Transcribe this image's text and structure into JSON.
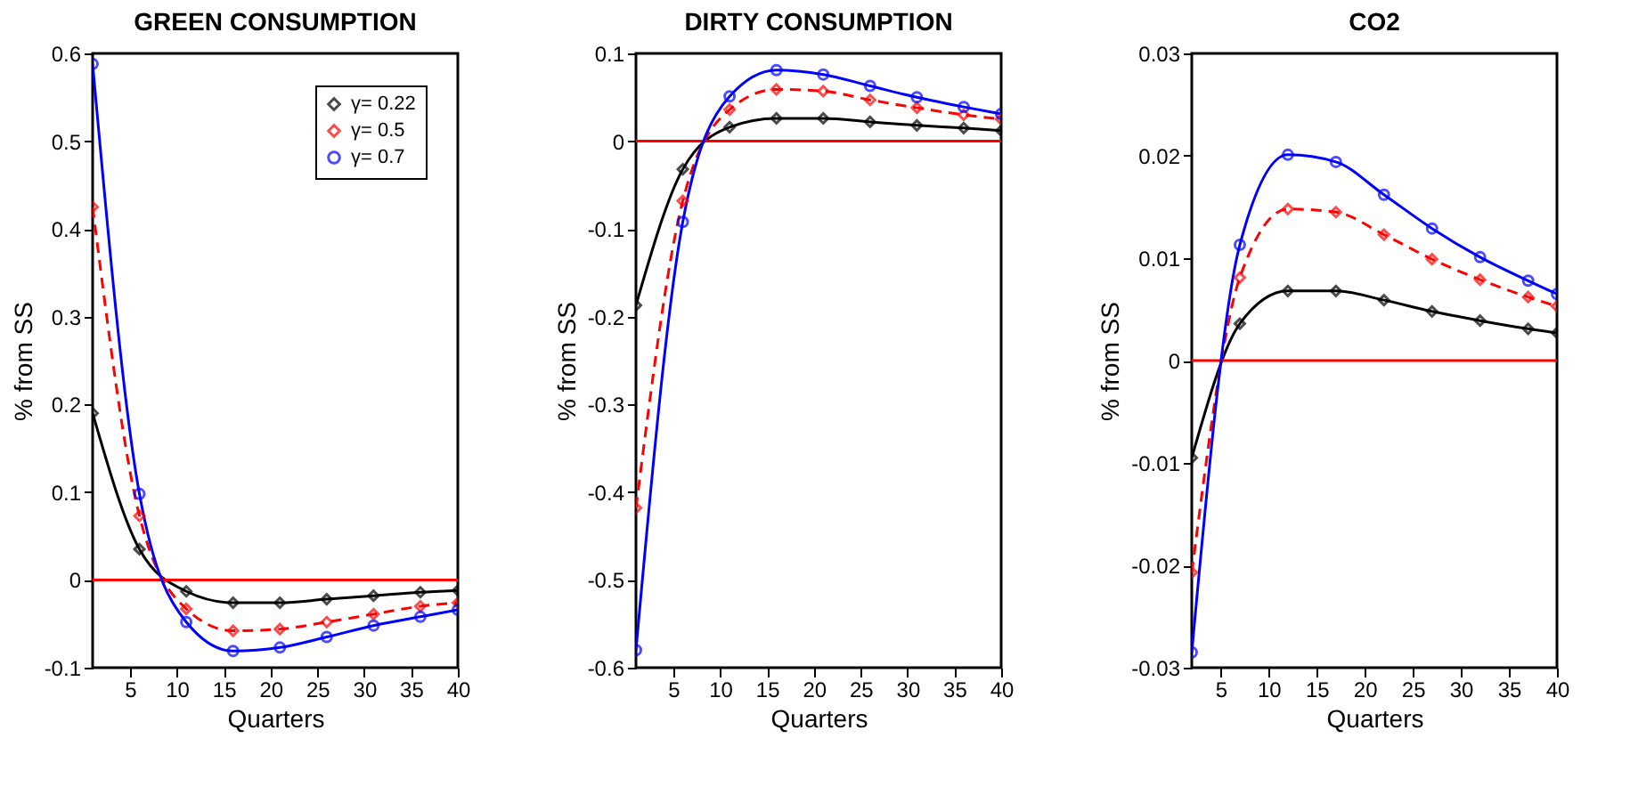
{
  "chart_data": [
    {
      "type": "line",
      "title": "GREEN CONSUMPTION",
      "xlabel": "Quarters",
      "ylabel": "% from SS",
      "xlim": [
        1,
        40
      ],
      "xticks": [
        5,
        10,
        15,
        20,
        25,
        30,
        35,
        40
      ],
      "ylim": [
        -0.1,
        0.6
      ],
      "yticks": [
        -0.1,
        0,
        0.1,
        0.2,
        0.3,
        0.4,
        0.5,
        0.6
      ],
      "grid": false,
      "legend": "top right",
      "x": [
        1,
        6,
        11,
        16,
        21,
        26,
        31,
        36,
        40
      ],
      "ref_lines": [
        {
          "axis": "y",
          "value": 0,
          "color": "#ff0000"
        }
      ],
      "series": [
        {
          "name": "γ= 0.22",
          "color": "#000000",
          "marker": "diamond",
          "line_style": "solid",
          "values": [
            0.19,
            0.035,
            -0.013,
            -0.026,
            -0.026,
            -0.022,
            -0.018,
            -0.014,
            -0.012
          ]
        },
        {
          "name": "γ= 0.5",
          "color": "#ff0000",
          "marker": "diamond",
          "line_style": "dashed",
          "values": [
            0.425,
            0.073,
            -0.033,
            -0.058,
            -0.056,
            -0.048,
            -0.039,
            -0.03,
            -0.026
          ]
        },
        {
          "name": "γ= 0.7",
          "color": "#0000ff",
          "marker": "circle",
          "line_style": "solid",
          "values": [
            0.588,
            0.098,
            -0.048,
            -0.081,
            -0.077,
            -0.065,
            -0.052,
            -0.042,
            -0.034
          ]
        }
      ]
    },
    {
      "type": "line",
      "title": "DIRTY CONSUMPTION",
      "xlabel": "Quarters",
      "ylabel": "% from SS",
      "xlim": [
        1,
        40
      ],
      "xticks": [
        5,
        10,
        15,
        20,
        25,
        30,
        35,
        40
      ],
      "ylim": [
        -0.6,
        0.1
      ],
      "yticks": [
        -0.6,
        -0.5,
        -0.4,
        -0.3,
        -0.2,
        -0.1,
        0,
        0.1
      ],
      "grid": false,
      "x": [
        1,
        6,
        11,
        16,
        21,
        26,
        31,
        36,
        40
      ],
      "ref_lines": [
        {
          "axis": "y",
          "value": 0,
          "color": "#ff0000"
        }
      ],
      "series": [
        {
          "color": "#000000",
          "marker": "diamond",
          "line_style": "solid",
          "values": [
            -0.187,
            -0.032,
            0.016,
            0.026,
            0.026,
            0.022,
            0.018,
            0.015,
            0.012
          ]
        },
        {
          "color": "#ff0000",
          "marker": "diamond",
          "line_style": "dashed",
          "values": [
            -0.418,
            -0.068,
            0.036,
            0.059,
            0.057,
            0.047,
            0.038,
            0.03,
            0.025
          ]
        },
        {
          "color": "#0000ff",
          "marker": "circle",
          "line_style": "solid",
          "values": [
            -0.58,
            -0.092,
            0.051,
            0.081,
            0.076,
            0.063,
            0.05,
            0.039,
            0.031
          ]
        }
      ]
    },
    {
      "type": "line",
      "title": "CO2",
      "xlabel": "Quarters",
      "ylabel": "% from SS",
      "xlim": [
        2,
        40
      ],
      "xticks": [
        5,
        10,
        15,
        20,
        25,
        30,
        35,
        40
      ],
      "ylim": [
        -0.03,
        0.03
      ],
      "yticks": [
        -0.03,
        -0.02,
        -0.01,
        0,
        0.01,
        0.02,
        0.03
      ],
      "grid": false,
      "x": [
        2,
        7,
        12,
        17,
        22,
        27,
        32,
        37,
        40
      ],
      "ref_lines": [
        {
          "axis": "y",
          "value": 0,
          "color": "#ff0000"
        }
      ],
      "series": [
        {
          "color": "#000000",
          "marker": "diamond",
          "line_style": "solid",
          "values": [
            -0.0095,
            0.0036,
            0.0068,
            0.0068,
            0.0059,
            0.0048,
            0.0039,
            0.0031,
            0.0027
          ]
        },
        {
          "color": "#ff0000",
          "marker": "diamond",
          "line_style": "dashed",
          "values": [
            -0.0207,
            0.0081,
            0.0148,
            0.0145,
            0.0123,
            0.0099,
            0.0079,
            0.0062,
            0.0053
          ]
        },
        {
          "color": "#0000ff",
          "marker": "circle",
          "line_style": "solid",
          "values": [
            -0.0285,
            0.0113,
            0.0201,
            0.0194,
            0.0162,
            0.0129,
            0.0101,
            0.0078,
            0.0065
          ]
        }
      ]
    }
  ]
}
